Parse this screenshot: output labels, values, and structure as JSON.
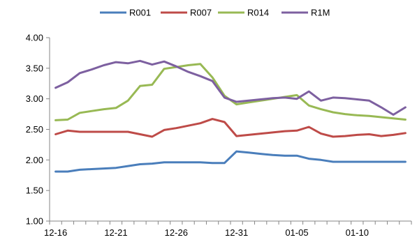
{
  "chart_data": {
    "type": "line",
    "title": "",
    "xlabel": "",
    "ylabel": "",
    "x": [
      "12-16",
      "12-17",
      "12-18",
      "12-19",
      "12-20",
      "12-21",
      "12-22",
      "12-23",
      "12-24",
      "12-25",
      "12-26",
      "12-27",
      "12-28",
      "12-29",
      "12-30",
      "12-31",
      "01-01",
      "01-02",
      "01-03",
      "01-04",
      "01-05",
      "01-06",
      "01-07",
      "01-08",
      "01-09",
      "01-10",
      "01-11",
      "01-12",
      "01-13",
      "01-14"
    ],
    "x_tick_labels": [
      "12-16",
      "12-21",
      "12-26",
      "12-31",
      "01-05",
      "01-10"
    ],
    "ylim": [
      1.0,
      4.0
    ],
    "y_ticks": [
      "1.00",
      "1.50",
      "2.00",
      "2.50",
      "3.00",
      "3.50",
      "4.00"
    ],
    "legend_position": "top",
    "grid": false,
    "series": [
      {
        "name": "R001",
        "color": "#4A7EBB",
        "values": [
          1.81,
          1.81,
          1.84,
          1.85,
          1.86,
          1.87,
          1.9,
          1.93,
          1.94,
          1.96,
          1.96,
          1.96,
          1.96,
          1.95,
          1.95,
          2.14,
          2.12,
          2.1,
          2.08,
          2.07,
          2.07,
          2.02,
          2.0,
          1.97,
          1.97,
          1.97,
          1.97,
          1.97,
          1.97,
          1.97
        ]
      },
      {
        "name": "R007",
        "color": "#BE4B48",
        "values": [
          2.42,
          2.48,
          2.46,
          2.46,
          2.46,
          2.46,
          2.46,
          2.42,
          2.38,
          2.49,
          2.52,
          2.56,
          2.6,
          2.67,
          2.62,
          2.39,
          2.41,
          2.43,
          2.45,
          2.47,
          2.48,
          2.54,
          2.43,
          2.38,
          2.39,
          2.41,
          2.42,
          2.39,
          2.41,
          2.44
        ]
      },
      {
        "name": "R014",
        "color": "#98B954",
        "values": [
          2.65,
          2.66,
          2.77,
          2.8,
          2.83,
          2.85,
          2.97,
          3.21,
          3.23,
          3.49,
          3.52,
          3.55,
          3.57,
          3.35,
          3.05,
          2.91,
          2.94,
          2.97,
          3.0,
          3.03,
          3.06,
          2.89,
          2.83,
          2.78,
          2.75,
          2.73,
          2.72,
          2.7,
          2.68,
          2.66
        ]
      },
      {
        "name": "R1M",
        "color": "#7D60A0",
        "values": [
          3.18,
          3.27,
          3.42,
          3.48,
          3.55,
          3.6,
          3.58,
          3.62,
          3.56,
          3.61,
          3.53,
          3.44,
          3.37,
          3.29,
          3.02,
          2.95,
          2.97,
          2.99,
          3.01,
          3.02,
          3.0,
          3.12,
          2.97,
          3.02,
          3.01,
          2.99,
          2.97,
          2.86,
          2.74,
          2.86
        ]
      }
    ]
  }
}
